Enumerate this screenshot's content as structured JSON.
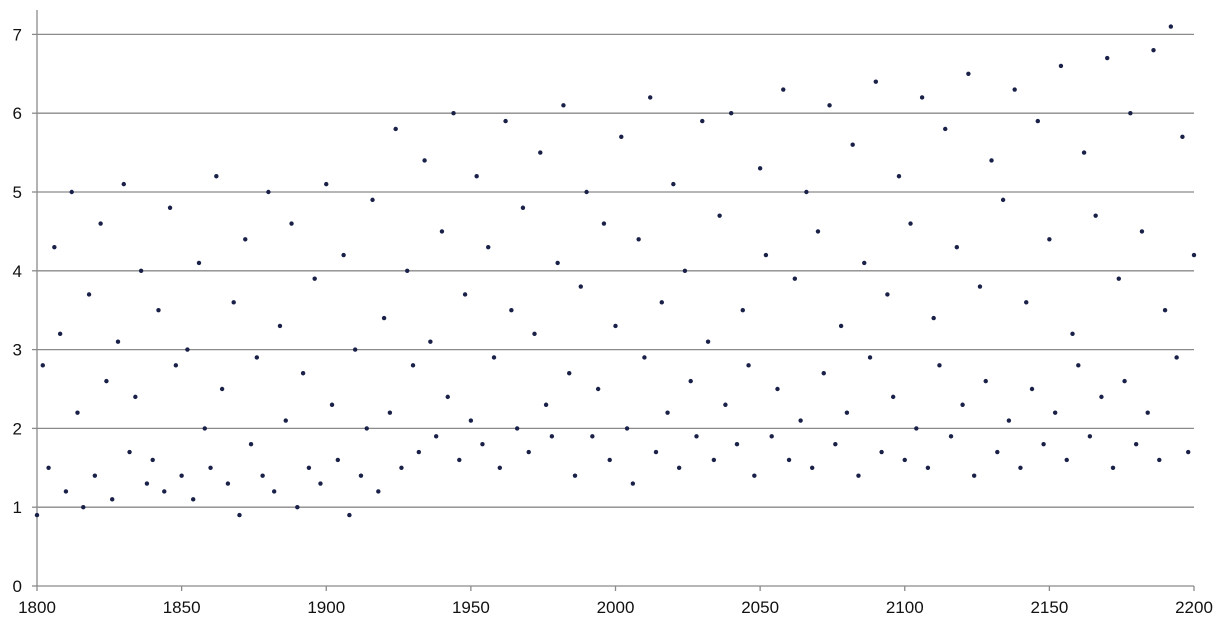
{
  "chart_data": {
    "type": "scatter",
    "title": "",
    "xlabel": "",
    "ylabel": "",
    "xlim": [
      1800,
      2200
    ],
    "ylim": [
      0,
      7
    ],
    "x_ticks": [
      "1800",
      "1850",
      "1900",
      "1950",
      "2000",
      "2050",
      "2100",
      "2150",
      "2200"
    ],
    "y_ticks": [
      "0",
      "1",
      "2",
      "3",
      "4",
      "5",
      "6",
      "7"
    ],
    "grid": "horizontal",
    "legend": "none",
    "marker_color": "#1a2148",
    "series": [
      {
        "values_note": "",
        "points": [
          [
            1800,
            0.9
          ],
          [
            1802,
            2.8
          ],
          [
            1804,
            1.5
          ],
          [
            1806,
            4.3
          ],
          [
            1808,
            3.2
          ],
          [
            1810,
            1.2
          ],
          [
            1812,
            5.0
          ],
          [
            1814,
            2.2
          ],
          [
            1816,
            1.0
          ],
          [
            1818,
            3.7
          ],
          [
            1820,
            1.4
          ],
          [
            1822,
            4.6
          ],
          [
            1824,
            2.6
          ],
          [
            1826,
            1.1
          ],
          [
            1828,
            3.1
          ],
          [
            1830,
            5.1
          ],
          [
            1832,
            1.7
          ],
          [
            1834,
            2.4
          ],
          [
            1836,
            4.0
          ],
          [
            1838,
            1.3
          ],
          [
            1840,
            1.6
          ],
          [
            1842,
            3.5
          ],
          [
            1844,
            1.2
          ],
          [
            1846,
            4.8
          ],
          [
            1848,
            2.8
          ],
          [
            1850,
            1.4
          ],
          [
            1852,
            3.0
          ],
          [
            1854,
            1.1
          ],
          [
            1856,
            4.1
          ],
          [
            1858,
            2.0
          ],
          [
            1860,
            1.5
          ],
          [
            1862,
            5.2
          ],
          [
            1864,
            2.5
          ],
          [
            1866,
            1.3
          ],
          [
            1868,
            3.6
          ],
          [
            1870,
            0.9
          ],
          [
            1872,
            4.4
          ],
          [
            1874,
            1.8
          ],
          [
            1876,
            2.9
          ],
          [
            1878,
            1.4
          ],
          [
            1880,
            5.0
          ],
          [
            1882,
            1.2
          ],
          [
            1884,
            3.3
          ],
          [
            1886,
            2.1
          ],
          [
            1888,
            4.6
          ],
          [
            1890,
            1.0
          ],
          [
            1892,
            2.7
          ],
          [
            1894,
            1.5
          ],
          [
            1896,
            3.9
          ],
          [
            1898,
            1.3
          ],
          [
            1900,
            5.1
          ],
          [
            1902,
            2.3
          ],
          [
            1904,
            1.6
          ],
          [
            1906,
            4.2
          ],
          [
            1908,
            0.9
          ],
          [
            1910,
            3.0
          ],
          [
            1912,
            1.4
          ],
          [
            1914,
            2.0
          ],
          [
            1916,
            4.9
          ],
          [
            1918,
            1.2
          ],
          [
            1920,
            3.4
          ],
          [
            1922,
            2.2
          ],
          [
            1924,
            5.8
          ],
          [
            1926,
            1.5
          ],
          [
            1928,
            4.0
          ],
          [
            1930,
            2.8
          ],
          [
            1932,
            1.7
          ],
          [
            1934,
            5.4
          ],
          [
            1936,
            3.1
          ],
          [
            1938,
            1.9
          ],
          [
            1940,
            4.5
          ],
          [
            1942,
            2.4
          ],
          [
            1944,
            6.0
          ],
          [
            1946,
            1.6
          ],
          [
            1948,
            3.7
          ],
          [
            1950,
            2.1
          ],
          [
            1952,
            5.2
          ],
          [
            1954,
            1.8
          ],
          [
            1956,
            4.3
          ],
          [
            1958,
            2.9
          ],
          [
            1960,
            1.5
          ],
          [
            1962,
            5.9
          ],
          [
            1964,
            3.5
          ],
          [
            1966,
            2.0
          ],
          [
            1968,
            4.8
          ],
          [
            1970,
            1.7
          ],
          [
            1972,
            3.2
          ],
          [
            1974,
            5.5
          ],
          [
            1976,
            2.3
          ],
          [
            1978,
            1.9
          ],
          [
            1980,
            4.1
          ],
          [
            1982,
            6.1
          ],
          [
            1984,
            2.7
          ],
          [
            1986,
            1.4
          ],
          [
            1988,
            3.8
          ],
          [
            1990,
            5.0
          ],
          [
            1992,
            1.9
          ],
          [
            1994,
            2.5
          ],
          [
            1996,
            4.6
          ],
          [
            1998,
            1.6
          ],
          [
            2000,
            3.3
          ],
          [
            2002,
            5.7
          ],
          [
            2004,
            2.0
          ],
          [
            2006,
            1.3
          ],
          [
            2008,
            4.4
          ],
          [
            2010,
            2.9
          ],
          [
            2012,
            6.2
          ],
          [
            2014,
            1.7
          ],
          [
            2016,
            3.6
          ],
          [
            2018,
            2.2
          ],
          [
            2020,
            5.1
          ],
          [
            2022,
            1.5
          ],
          [
            2024,
            4.0
          ],
          [
            2026,
            2.6
          ],
          [
            2028,
            1.9
          ],
          [
            2030,
            5.9
          ],
          [
            2032,
            3.1
          ],
          [
            2034,
            1.6
          ],
          [
            2036,
            4.7
          ],
          [
            2038,
            2.3
          ],
          [
            2040,
            6.0
          ],
          [
            2042,
            1.8
          ],
          [
            2044,
            3.5
          ],
          [
            2046,
            2.8
          ],
          [
            2048,
            1.4
          ],
          [
            2050,
            5.3
          ],
          [
            2052,
            4.2
          ],
          [
            2054,
            1.9
          ],
          [
            2056,
            2.5
          ],
          [
            2058,
            6.3
          ],
          [
            2060,
            1.6
          ],
          [
            2062,
            3.9
          ],
          [
            2064,
            2.1
          ],
          [
            2066,
            5.0
          ],
          [
            2068,
            1.5
          ],
          [
            2070,
            4.5
          ],
          [
            2072,
            2.7
          ],
          [
            2074,
            6.1
          ],
          [
            2076,
            1.8
          ],
          [
            2078,
            3.3
          ],
          [
            2080,
            2.2
          ],
          [
            2082,
            5.6
          ],
          [
            2084,
            1.4
          ],
          [
            2086,
            4.1
          ],
          [
            2088,
            2.9
          ],
          [
            2090,
            6.4
          ],
          [
            2092,
            1.7
          ],
          [
            2094,
            3.7
          ],
          [
            2096,
            2.4
          ],
          [
            2098,
            5.2
          ],
          [
            2100,
            1.6
          ],
          [
            2102,
            4.6
          ],
          [
            2104,
            2.0
          ],
          [
            2106,
            6.2
          ],
          [
            2108,
            1.5
          ],
          [
            2110,
            3.4
          ],
          [
            2112,
            2.8
          ],
          [
            2114,
            5.8
          ],
          [
            2116,
            1.9
          ],
          [
            2118,
            4.3
          ],
          [
            2120,
            2.3
          ],
          [
            2122,
            6.5
          ],
          [
            2124,
            1.4
          ],
          [
            2126,
            3.8
          ],
          [
            2128,
            2.6
          ],
          [
            2130,
            5.4
          ],
          [
            2132,
            1.7
          ],
          [
            2134,
            4.9
          ],
          [
            2136,
            2.1
          ],
          [
            2138,
            6.3
          ],
          [
            2140,
            1.5
          ],
          [
            2142,
            3.6
          ],
          [
            2144,
            2.5
          ],
          [
            2146,
            5.9
          ],
          [
            2148,
            1.8
          ],
          [
            2150,
            4.4
          ],
          [
            2152,
            2.2
          ],
          [
            2154,
            6.6
          ],
          [
            2156,
            1.6
          ],
          [
            2158,
            3.2
          ],
          [
            2160,
            2.8
          ],
          [
            2162,
            5.5
          ],
          [
            2164,
            1.9
          ],
          [
            2166,
            4.7
          ],
          [
            2168,
            2.4
          ],
          [
            2170,
            6.7
          ],
          [
            2172,
            1.5
          ],
          [
            2174,
            3.9
          ],
          [
            2176,
            2.6
          ],
          [
            2178,
            6.0
          ],
          [
            2180,
            1.8
          ],
          [
            2182,
            4.5
          ],
          [
            2184,
            2.2
          ],
          [
            2186,
            6.8
          ],
          [
            2188,
            1.6
          ],
          [
            2190,
            3.5
          ],
          [
            2192,
            7.1
          ],
          [
            2194,
            2.9
          ],
          [
            2196,
            5.7
          ],
          [
            2198,
            1.7
          ],
          [
            2200,
            4.2
          ]
        ]
      }
    ]
  }
}
